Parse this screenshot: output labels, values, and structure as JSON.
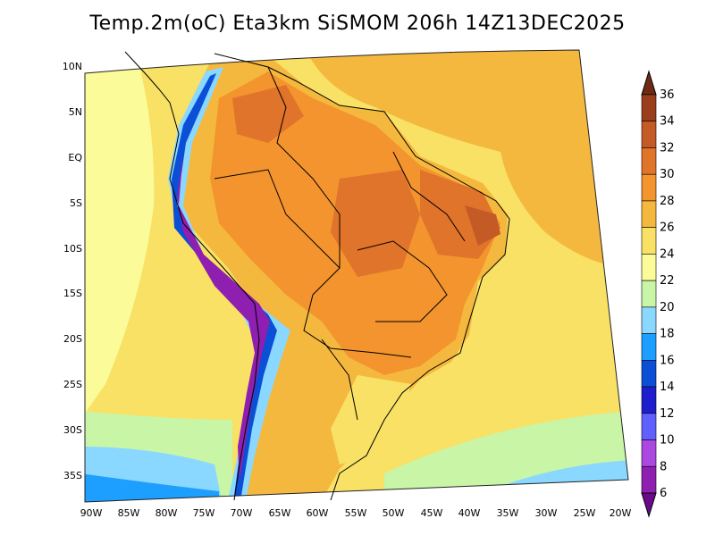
{
  "title": "Temp.2m(oC) Eta3km SiSMOM 206h 14Z13DEC2025",
  "chart_data": {
    "type": "heatmap",
    "variable": "Temp.2m(oC)",
    "region": "South America",
    "lon_ticks": [
      "90W",
      "85W",
      "80W",
      "75W",
      "70W",
      "65W",
      "60W",
      "55W",
      "50W",
      "45W",
      "40W",
      "35W",
      "30W",
      "25W",
      "20W"
    ],
    "lat_ticks": [
      "10N",
      "5N",
      "EQ",
      "5S",
      "10S",
      "15S",
      "20S",
      "25S",
      "30S",
      "35S"
    ],
    "colorbar": {
      "labels": [
        "6",
        "8",
        "10",
        "12",
        "14",
        "16",
        "18",
        "20",
        "22",
        "24",
        "26",
        "28",
        "30",
        "32",
        "34",
        "36"
      ],
      "colors": [
        "#6a0a8a",
        "#8f1fb0",
        "#aa48e0",
        "#6060ff",
        "#1e1ecc",
        "#0a4fd6",
        "#1d9fff",
        "#8ad8ff",
        "#c9f5a6",
        "#fbfb9a",
        "#f8e165",
        "#f5b83e",
        "#f3942e",
        "#e0742a",
        "#c45a26",
        "#9a3e1c",
        "#6e2a12"
      ],
      "min_arrow": "below 6",
      "max_arrow": "above 36"
    },
    "field_summary": {
      "ocean_north_east": "28-30",
      "ocean_south": "20-24",
      "amazon_northeast_brazil": "30-34",
      "andes": "6-20",
      "southern_cone": "24-30"
    }
  }
}
